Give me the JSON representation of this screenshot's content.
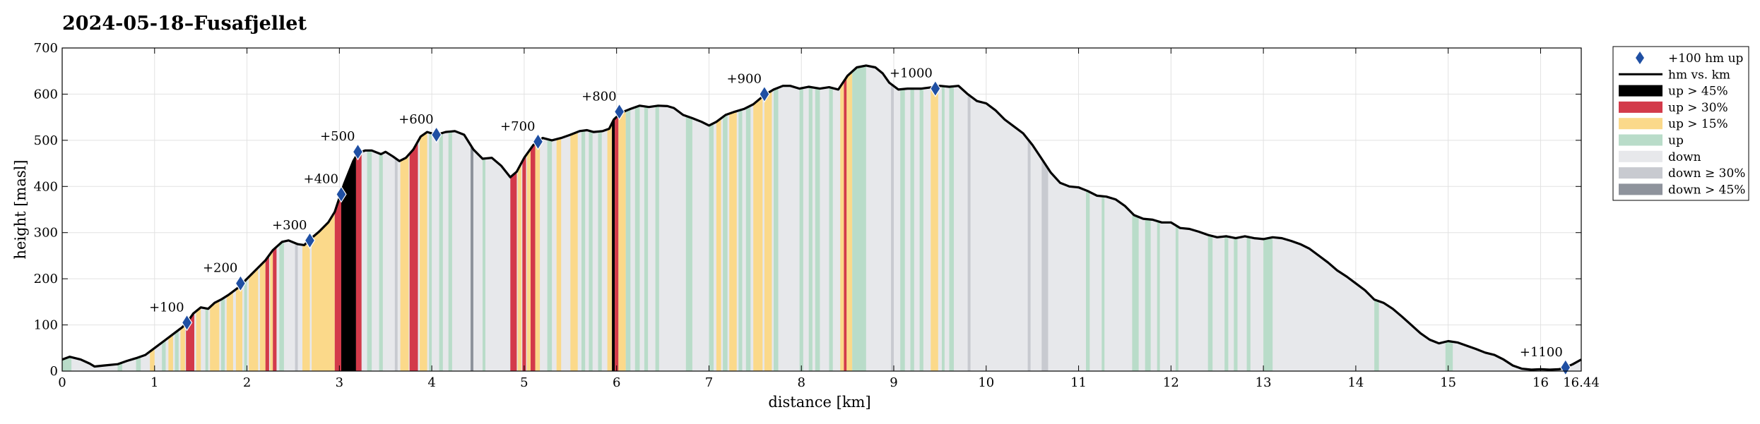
{
  "chart_data": {
    "type": "area",
    "title": "2024-05-18–Fusafjellet",
    "xlabel": "distance [km]",
    "ylabel": "height [masl]",
    "xlim": [
      0,
      16.44
    ],
    "ylim": [
      0,
      700
    ],
    "x_ticks": [
      0,
      1,
      2,
      3,
      4,
      5,
      6,
      7,
      8,
      9,
      10,
      11,
      12,
      13,
      14,
      15,
      16
    ],
    "x_tick_labels": [
      "0",
      "1",
      "2",
      "3",
      "4",
      "5",
      "6",
      "7",
      "8",
      "9",
      "10",
      "11",
      "12",
      "13",
      "14",
      "15",
      "16"
    ],
    "x_end_label": "16.44",
    "y_ticks": [
      0,
      100,
      200,
      300,
      400,
      500,
      600,
      700
    ],
    "y_tick_labels": [
      "0",
      "100",
      "200",
      "300",
      "400",
      "500",
      "600",
      "700"
    ],
    "grid": true,
    "legend_position": "outside-right",
    "colors": {
      "line": "#000000",
      "up45": "#000000",
      "up30": "#d33a4a",
      "up15": "#fbd98a",
      "up": "#b9dcc9",
      "down": "#e7e8eb",
      "down30": "#c8cad0",
      "down45": "#8e939c",
      "marker": "#1f4fa3"
    },
    "legend": [
      {
        "key": "marker",
        "label": "+100 hm up"
      },
      {
        "key": "line",
        "label": "hm vs. km"
      },
      {
        "key": "up45",
        "label": "up > 45%"
      },
      {
        "key": "up30",
        "label": "up > 30%"
      },
      {
        "key": "up15",
        "label": "up > 15%"
      },
      {
        "key": "up",
        "label": "up"
      },
      {
        "key": "down",
        "label": "down"
      },
      {
        "key": "down30",
        "label": "down ≥ 30%"
      },
      {
        "key": "down45",
        "label": "down > 45%"
      }
    ],
    "profile": {
      "name": "hm vs. km",
      "points": [
        [
          0,
          25
        ],
        [
          0.08,
          31
        ],
        [
          0.2,
          25
        ],
        [
          0.3,
          16
        ],
        [
          0.35,
          10
        ],
        [
          0.45,
          12
        ],
        [
          0.6,
          15
        ],
        [
          0.7,
          22
        ],
        [
          0.8,
          28
        ],
        [
          0.9,
          35
        ],
        [
          1.0,
          50
        ],
        [
          1.1,
          65
        ],
        [
          1.2,
          80
        ],
        [
          1.3,
          95
        ],
        [
          1.35,
          105
        ],
        [
          1.42,
          125
        ],
        [
          1.5,
          138
        ],
        [
          1.58,
          135
        ],
        [
          1.65,
          148
        ],
        [
          1.72,
          155
        ],
        [
          1.8,
          165
        ],
        [
          1.9,
          180
        ],
        [
          2.0,
          200
        ],
        [
          2.1,
          220
        ],
        [
          2.2,
          240
        ],
        [
          2.28,
          262
        ],
        [
          2.38,
          280
        ],
        [
          2.45,
          283
        ],
        [
          2.55,
          275
        ],
        [
          2.62,
          273
        ],
        [
          2.68,
          285
        ],
        [
          2.78,
          302
        ],
        [
          2.88,
          322
        ],
        [
          2.95,
          345
        ],
        [
          3.0,
          375
        ],
        [
          3.05,
          405
        ],
        [
          3.1,
          430
        ],
        [
          3.15,
          455
        ],
        [
          3.2,
          472
        ],
        [
          3.28,
          478
        ],
        [
          3.35,
          478
        ],
        [
          3.45,
          470
        ],
        [
          3.5,
          475
        ],
        [
          3.58,
          465
        ],
        [
          3.65,
          455
        ],
        [
          3.72,
          462
        ],
        [
          3.8,
          480
        ],
        [
          3.88,
          508
        ],
        [
          3.95,
          518
        ],
        [
          4.05,
          512
        ],
        [
          4.15,
          518
        ],
        [
          4.25,
          520
        ],
        [
          4.35,
          512
        ],
        [
          4.45,
          480
        ],
        [
          4.55,
          460
        ],
        [
          4.65,
          462
        ],
        [
          4.75,
          445
        ],
        [
          4.85,
          420
        ],
        [
          4.92,
          432
        ],
        [
          5.0,
          462
        ],
        [
          5.1,
          490
        ],
        [
          5.2,
          505
        ],
        [
          5.3,
          500
        ],
        [
          5.4,
          505
        ],
        [
          5.5,
          512
        ],
        [
          5.6,
          520
        ],
        [
          5.68,
          522
        ],
        [
          5.75,
          518
        ],
        [
          5.85,
          520
        ],
        [
          5.92,
          525
        ],
        [
          5.97,
          545
        ],
        [
          6.05,
          560
        ],
        [
          6.15,
          568
        ],
        [
          6.25,
          575
        ],
        [
          6.35,
          572
        ],
        [
          6.45,
          575
        ],
        [
          6.55,
          574
        ],
        [
          6.62,
          570
        ],
        [
          6.72,
          555
        ],
        [
          6.82,
          548
        ],
        [
          6.92,
          540
        ],
        [
          7.0,
          532
        ],
        [
          7.08,
          540
        ],
        [
          7.18,
          555
        ],
        [
          7.28,
          562
        ],
        [
          7.38,
          568
        ],
        [
          7.48,
          578
        ],
        [
          7.6,
          598
        ],
        [
          7.7,
          610
        ],
        [
          7.8,
          618
        ],
        [
          7.88,
          618
        ],
        [
          7.98,
          612
        ],
        [
          8.08,
          616
        ],
        [
          8.2,
          612
        ],
        [
          8.3,
          615
        ],
        [
          8.4,
          610
        ],
        [
          8.5,
          640
        ],
        [
          8.6,
          658
        ],
        [
          8.7,
          662
        ],
        [
          8.8,
          658
        ],
        [
          8.88,
          645
        ],
        [
          8.95,
          625
        ],
        [
          9.05,
          610
        ],
        [
          9.15,
          612
        ],
        [
          9.3,
          612
        ],
        [
          9.42,
          615
        ],
        [
          9.5,
          618
        ],
        [
          9.6,
          616
        ],
        [
          9.7,
          618
        ],
        [
          9.8,
          600
        ],
        [
          9.9,
          585
        ],
        [
          10.0,
          580
        ],
        [
          10.1,
          565
        ],
        [
          10.2,
          545
        ],
        [
          10.3,
          530
        ],
        [
          10.4,
          515
        ],
        [
          10.5,
          490
        ],
        [
          10.6,
          460
        ],
        [
          10.7,
          430
        ],
        [
          10.8,
          408
        ],
        [
          10.9,
          400
        ],
        [
          11.0,
          398
        ],
        [
          11.1,
          390
        ],
        [
          11.2,
          380
        ],
        [
          11.3,
          378
        ],
        [
          11.4,
          372
        ],
        [
          11.5,
          358
        ],
        [
          11.6,
          338
        ],
        [
          11.7,
          330
        ],
        [
          11.8,
          328
        ],
        [
          11.9,
          322
        ],
        [
          12.0,
          322
        ],
        [
          12.1,
          310
        ],
        [
          12.2,
          308
        ],
        [
          12.3,
          302
        ],
        [
          12.4,
          295
        ],
        [
          12.5,
          290
        ],
        [
          12.6,
          292
        ],
        [
          12.7,
          288
        ],
        [
          12.8,
          292
        ],
        [
          12.9,
          288
        ],
        [
          13.0,
          286
        ],
        [
          13.1,
          290
        ],
        [
          13.2,
          288
        ],
        [
          13.3,
          282
        ],
        [
          13.4,
          275
        ],
        [
          13.5,
          265
        ],
        [
          13.6,
          250
        ],
        [
          13.7,
          235
        ],
        [
          13.8,
          218
        ],
        [
          13.9,
          205
        ],
        [
          14.0,
          190
        ],
        [
          14.1,
          175
        ],
        [
          14.2,
          155
        ],
        [
          14.3,
          148
        ],
        [
          14.4,
          135
        ],
        [
          14.5,
          118
        ],
        [
          14.6,
          100
        ],
        [
          14.7,
          82
        ],
        [
          14.8,
          68
        ],
        [
          14.9,
          60
        ],
        [
          15.0,
          65
        ],
        [
          15.1,
          62
        ],
        [
          15.2,
          55
        ],
        [
          15.3,
          48
        ],
        [
          15.4,
          40
        ],
        [
          15.5,
          35
        ],
        [
          15.6,
          25
        ],
        [
          15.7,
          12
        ],
        [
          15.8,
          5
        ],
        [
          15.9,
          3
        ],
        [
          16.0,
          4
        ],
        [
          16.1,
          3
        ],
        [
          16.2,
          4
        ],
        [
          16.27,
          8
        ],
        [
          16.35,
          15
        ],
        [
          16.44,
          25
        ]
      ]
    },
    "milestones": [
      {
        "label": "+100",
        "x": 1.35,
        "y": 105
      },
      {
        "label": "+200",
        "x": 1.93,
        "y": 190
      },
      {
        "label": "+300",
        "x": 2.68,
        "y": 283
      },
      {
        "label": "+400",
        "x": 3.02,
        "y": 383
      },
      {
        "label": "+500",
        "x": 3.2,
        "y": 475
      },
      {
        "label": "+600",
        "x": 4.05,
        "y": 512
      },
      {
        "label": "+700",
        "x": 5.15,
        "y": 497
      },
      {
        "label": "+800",
        "x": 6.03,
        "y": 562
      },
      {
        "label": "+900",
        "x": 7.6,
        "y": 600
      },
      {
        "label": "+1000",
        "x": 9.45,
        "y": 612
      },
      {
        "label": "+1100",
        "x": 16.27,
        "y": 8
      }
    ],
    "grade_bands": [
      {
        "x0": 0.0,
        "x1": 0.1,
        "cat": "up"
      },
      {
        "x0": 0.6,
        "x1": 0.65,
        "cat": "up"
      },
      {
        "x0": 0.8,
        "x1": 0.85,
        "cat": "up"
      },
      {
        "x0": 0.95,
        "x1": 1.0,
        "cat": "up15"
      },
      {
        "x0": 1.08,
        "x1": 1.12,
        "cat": "up"
      },
      {
        "x0": 1.15,
        "x1": 1.2,
        "cat": "up15"
      },
      {
        "x0": 1.22,
        "x1": 1.26,
        "cat": "up"
      },
      {
        "x0": 1.28,
        "x1": 1.33,
        "cat": "up15"
      },
      {
        "x0": 1.34,
        "x1": 1.43,
        "cat": "up30"
      },
      {
        "x0": 1.45,
        "x1": 1.5,
        "cat": "up15"
      },
      {
        "x0": 1.55,
        "x1": 1.58,
        "cat": "up"
      },
      {
        "x0": 1.6,
        "x1": 1.7,
        "cat": "up15"
      },
      {
        "x0": 1.72,
        "x1": 1.76,
        "cat": "up"
      },
      {
        "x0": 1.78,
        "x1": 1.85,
        "cat": "up15"
      },
      {
        "x0": 1.88,
        "x1": 1.95,
        "cat": "up15"
      },
      {
        "x0": 1.97,
        "x1": 2.0,
        "cat": "up"
      },
      {
        "x0": 2.02,
        "x1": 2.12,
        "cat": "up15"
      },
      {
        "x0": 2.14,
        "x1": 2.2,
        "cat": "up15"
      },
      {
        "x0": 2.2,
        "x1": 2.24,
        "cat": "up30"
      },
      {
        "x0": 2.25,
        "x1": 2.28,
        "cat": "up15"
      },
      {
        "x0": 2.28,
        "x1": 2.32,
        "cat": "up30"
      },
      {
        "x0": 2.35,
        "x1": 2.4,
        "cat": "up"
      },
      {
        "x0": 2.52,
        "x1": 2.55,
        "cat": "down30"
      },
      {
        "x0": 2.6,
        "x1": 2.68,
        "cat": "up15"
      },
      {
        "x0": 2.7,
        "x1": 2.95,
        "cat": "up15"
      },
      {
        "x0": 2.95,
        "x1": 3.02,
        "cat": "up30"
      },
      {
        "x0": 3.02,
        "x1": 3.18,
        "cat": "up45"
      },
      {
        "x0": 3.18,
        "x1": 3.24,
        "cat": "up30"
      },
      {
        "x0": 3.3,
        "x1": 3.35,
        "cat": "up"
      },
      {
        "x0": 3.43,
        "x1": 3.47,
        "cat": "up"
      },
      {
        "x0": 3.6,
        "x1": 3.63,
        "cat": "down30"
      },
      {
        "x0": 3.66,
        "x1": 3.75,
        "cat": "up15"
      },
      {
        "x0": 3.76,
        "x1": 3.85,
        "cat": "up30"
      },
      {
        "x0": 3.87,
        "x1": 3.95,
        "cat": "up15"
      },
      {
        "x0": 3.97,
        "x1": 4.0,
        "cat": "up"
      },
      {
        "x0": 4.08,
        "x1": 4.12,
        "cat": "up"
      },
      {
        "x0": 4.18,
        "x1": 4.22,
        "cat": "up"
      },
      {
        "x0": 4.42,
        "x1": 4.45,
        "cat": "down45"
      },
      {
        "x0": 4.55,
        "x1": 4.58,
        "cat": "up"
      },
      {
        "x0": 4.85,
        "x1": 4.92,
        "cat": "up30"
      },
      {
        "x0": 4.93,
        "x1": 4.97,
        "cat": "up15"
      },
      {
        "x0": 4.98,
        "x1": 5.02,
        "cat": "up30"
      },
      {
        "x0": 5.03,
        "x1": 5.07,
        "cat": "up15"
      },
      {
        "x0": 5.07,
        "x1": 5.12,
        "cat": "up30"
      },
      {
        "x0": 5.12,
        "x1": 5.17,
        "cat": "up15"
      },
      {
        "x0": 5.25,
        "x1": 5.3,
        "cat": "up"
      },
      {
        "x0": 5.35,
        "x1": 5.4,
        "cat": "up15"
      },
      {
        "x0": 5.5,
        "x1": 5.58,
        "cat": "up15"
      },
      {
        "x0": 5.62,
        "x1": 5.66,
        "cat": "up"
      },
      {
        "x0": 5.7,
        "x1": 5.74,
        "cat": "up"
      },
      {
        "x0": 5.8,
        "x1": 5.84,
        "cat": "up"
      },
      {
        "x0": 5.9,
        "x1": 5.95,
        "cat": "up15"
      },
      {
        "x0": 5.95,
        "x1": 5.98,
        "cat": "up45"
      },
      {
        "x0": 5.98,
        "x1": 6.02,
        "cat": "up30"
      },
      {
        "x0": 6.02,
        "x1": 6.1,
        "cat": "up15"
      },
      {
        "x0": 6.1,
        "x1": 6.15,
        "cat": "up"
      },
      {
        "x0": 6.2,
        "x1": 6.25,
        "cat": "up"
      },
      {
        "x0": 6.3,
        "x1": 6.34,
        "cat": "up"
      },
      {
        "x0": 6.42,
        "x1": 6.46,
        "cat": "up"
      },
      {
        "x0": 6.75,
        "x1": 6.82,
        "cat": "up"
      },
      {
        "x0": 7.0,
        "x1": 7.05,
        "cat": "up"
      },
      {
        "x0": 7.08,
        "x1": 7.13,
        "cat": "up15"
      },
      {
        "x0": 7.15,
        "x1": 7.2,
        "cat": "up"
      },
      {
        "x0": 7.22,
        "x1": 7.3,
        "cat": "up15"
      },
      {
        "x0": 7.32,
        "x1": 7.36,
        "cat": "up"
      },
      {
        "x0": 7.4,
        "x1": 7.45,
        "cat": "up"
      },
      {
        "x0": 7.48,
        "x1": 7.58,
        "cat": "up15"
      },
      {
        "x0": 7.6,
        "x1": 7.68,
        "cat": "up15"
      },
      {
        "x0": 7.7,
        "x1": 7.75,
        "cat": "up"
      },
      {
        "x0": 7.98,
        "x1": 8.02,
        "cat": "up"
      },
      {
        "x0": 8.08,
        "x1": 8.12,
        "cat": "up"
      },
      {
        "x0": 8.15,
        "x1": 8.2,
        "cat": "up"
      },
      {
        "x0": 8.3,
        "x1": 8.34,
        "cat": "up"
      },
      {
        "x0": 8.42,
        "x1": 8.46,
        "cat": "up15"
      },
      {
        "x0": 8.46,
        "x1": 8.49,
        "cat": "up30"
      },
      {
        "x0": 8.49,
        "x1": 8.55,
        "cat": "up15"
      },
      {
        "x0": 8.55,
        "x1": 8.7,
        "cat": "up"
      },
      {
        "x0": 8.97,
        "x1": 9.0,
        "cat": "down30"
      },
      {
        "x0": 9.07,
        "x1": 9.12,
        "cat": "up"
      },
      {
        "x0": 9.18,
        "x1": 9.22,
        "cat": "up"
      },
      {
        "x0": 9.28,
        "x1": 9.32,
        "cat": "up"
      },
      {
        "x0": 9.4,
        "x1": 9.48,
        "cat": "up15"
      },
      {
        "x0": 9.52,
        "x1": 9.55,
        "cat": "up"
      },
      {
        "x0": 9.6,
        "x1": 9.65,
        "cat": "up"
      },
      {
        "x0": 9.8,
        "x1": 9.83,
        "cat": "down30"
      },
      {
        "x0": 10.45,
        "x1": 10.48,
        "cat": "down30"
      },
      {
        "x0": 10.6,
        "x1": 10.67,
        "cat": "down30"
      },
      {
        "x0": 11.08,
        "x1": 11.12,
        "cat": "up"
      },
      {
        "x0": 11.25,
        "x1": 11.28,
        "cat": "up"
      },
      {
        "x0": 11.58,
        "x1": 11.65,
        "cat": "up"
      },
      {
        "x0": 11.72,
        "x1": 11.78,
        "cat": "up"
      },
      {
        "x0": 11.85,
        "x1": 11.88,
        "cat": "up"
      },
      {
        "x0": 12.05,
        "x1": 12.08,
        "cat": "up"
      },
      {
        "x0": 12.4,
        "x1": 12.45,
        "cat": "up"
      },
      {
        "x0": 12.58,
        "x1": 12.62,
        "cat": "up"
      },
      {
        "x0": 12.68,
        "x1": 12.72,
        "cat": "up"
      },
      {
        "x0": 12.82,
        "x1": 12.86,
        "cat": "up"
      },
      {
        "x0": 13.0,
        "x1": 13.1,
        "cat": "up"
      },
      {
        "x0": 14.2,
        "x1": 14.25,
        "cat": "up"
      },
      {
        "x0": 14.97,
        "x1": 15.05,
        "cat": "up"
      },
      {
        "x0": 16.25,
        "x1": 16.3,
        "cat": "up"
      }
    ]
  }
}
